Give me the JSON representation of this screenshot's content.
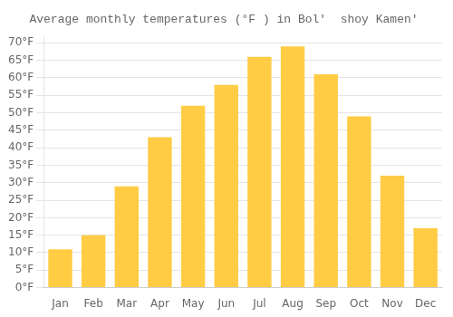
{
  "chart_data": {
    "type": "bar",
    "title": "Average monthly temperatures (°F ) in Bolʹ  shoy Kamenʹ",
    "categories": [
      "Jan",
      "Feb",
      "Mar",
      "Apr",
      "May",
      "Jun",
      "Jul",
      "Aug",
      "Sep",
      "Oct",
      "Nov",
      "Dec"
    ],
    "values": [
      11,
      15,
      29,
      43,
      52,
      58,
      66,
      69,
      61,
      49,
      32,
      17
    ],
    "color": "#FFCC44",
    "ylim": [
      0,
      72
    ],
    "yticks": [
      {
        "value": 0,
        "label": "0°F"
      },
      {
        "value": 5,
        "label": "5°F"
      },
      {
        "value": 10,
        "label": "10°F"
      },
      {
        "value": 15,
        "label": "15°F"
      },
      {
        "value": 20,
        "label": "20°F"
      },
      {
        "value": 25,
        "label": "25°F"
      },
      {
        "value": 30,
        "label": "30°F"
      },
      {
        "value": 35,
        "label": "35°F"
      },
      {
        "value": 40,
        "label": "40°F"
      },
      {
        "value": 45,
        "label": "45°F"
      },
      {
        "value": 50,
        "label": "50°F"
      },
      {
        "value": 55,
        "label": "55°F"
      },
      {
        "value": 60,
        "label": "60°F"
      },
      {
        "value": 65,
        "label": "65°F"
      },
      {
        "value": 70,
        "label": "70°F"
      }
    ],
    "grid": true
  }
}
